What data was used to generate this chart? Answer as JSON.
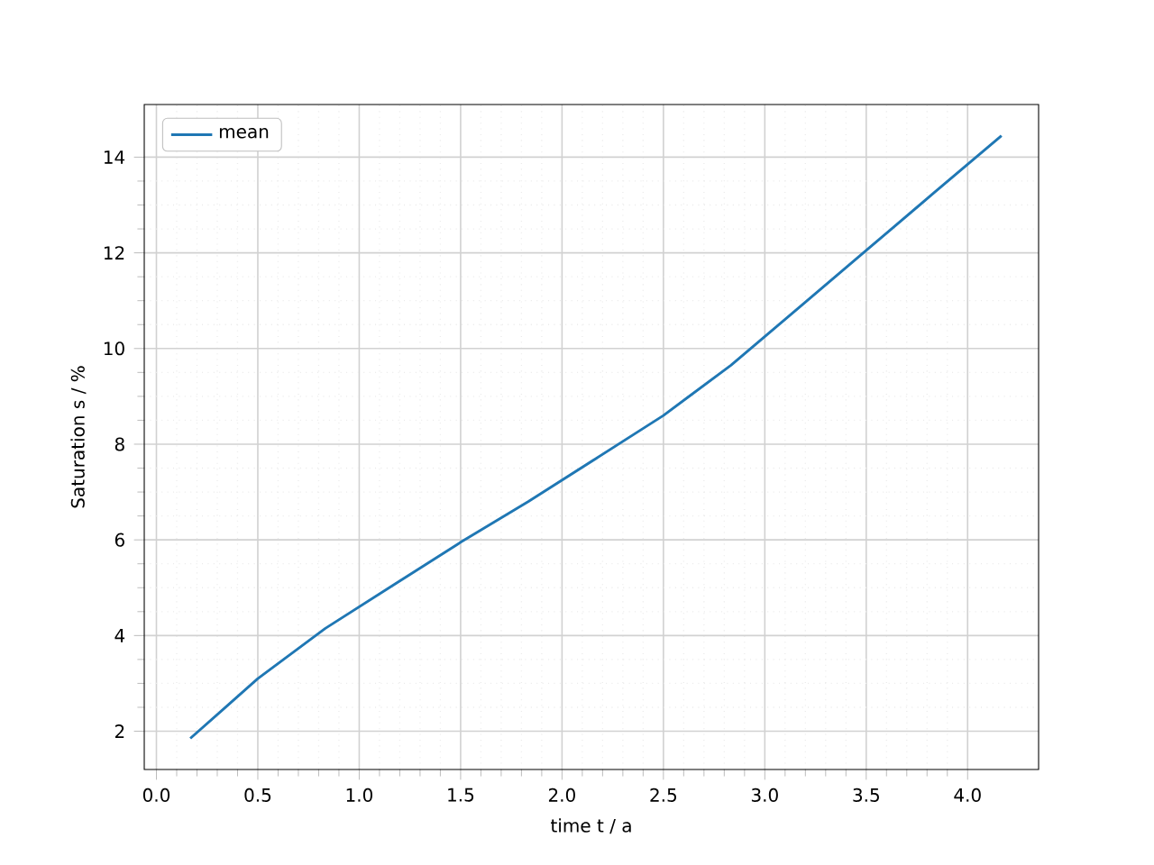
{
  "chart_data": {
    "type": "line",
    "xlabel": "time t / a",
    "ylabel": "Saturation s / %",
    "x": [
      0.167,
      0.5,
      0.833,
      1.167,
      1.5,
      1.833,
      2.167,
      2.5,
      2.833,
      3.167,
      3.5,
      3.833,
      4.167
    ],
    "series": [
      {
        "name": "mean",
        "color": "#1f77b4",
        "values": [
          1.85,
          3.1,
          4.15,
          5.05,
          5.95,
          6.8,
          7.7,
          8.6,
          9.65,
          10.85,
          12.05,
          13.25,
          14.45
        ]
      }
    ],
    "xlim": [
      -0.06,
      4.35
    ],
    "ylim": [
      1.2,
      15.1
    ],
    "xticks": [
      {
        "value": 0,
        "label": "0.0"
      },
      0.5,
      {
        "value": 1,
        "label": "1.0"
      },
      1.5,
      {
        "value": 2,
        "label": "2.0"
      },
      2.5,
      {
        "value": 3,
        "label": "3.0"
      },
      3.5,
      {
        "value": 4,
        "label": "4.0"
      }
    ],
    "yticks": [
      2,
      4,
      6,
      8,
      10,
      12,
      14
    ],
    "grid": true,
    "legend": "top left",
    "marker": "none",
    "line_style": "solid"
  }
}
